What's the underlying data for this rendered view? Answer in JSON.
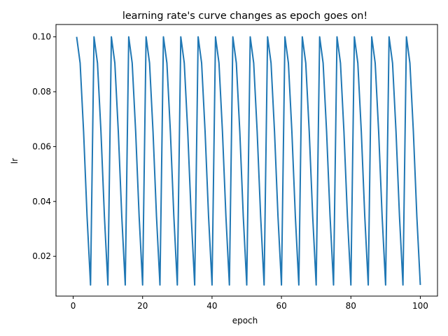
{
  "chart_data": {
    "type": "line",
    "title": "learning rate's curve changes as epoch goes on!",
    "xlabel": "epoch",
    "ylabel": "lr",
    "xlim": [
      -4.95,
      104.95
    ],
    "ylim": [
      0.0055,
      0.1045
    ],
    "xticks": [
      0,
      20,
      40,
      60,
      80,
      100
    ],
    "xtick_labels": [
      "0",
      "20",
      "40",
      "60",
      "80",
      "100"
    ],
    "yticks": [
      0.02,
      0.04,
      0.06,
      0.08,
      0.1
    ],
    "ytick_labels": [
      "0.02",
      "0.04",
      "0.06",
      "0.08",
      "0.10"
    ],
    "grid": false,
    "series": [
      {
        "name": "lr",
        "color": "#1f77b4",
        "cycle_length": 5,
        "cycle_values": [
          0.1,
          0.09045,
          0.06545,
          0.03455,
          0.00955
        ],
        "x_start": 1,
        "x_end": 100
      }
    ]
  }
}
